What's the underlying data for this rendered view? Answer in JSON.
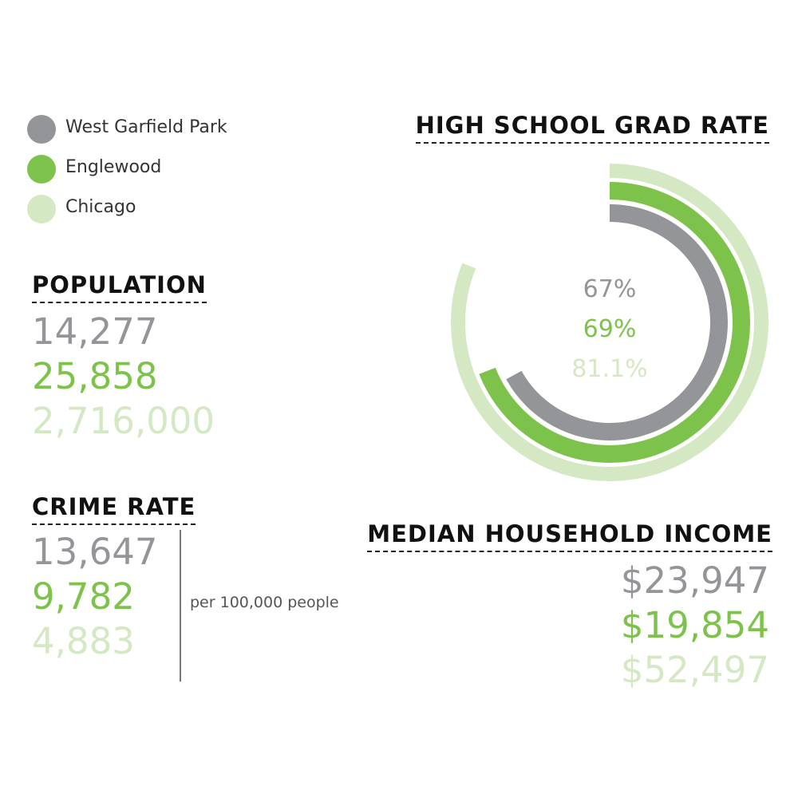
{
  "legend": [
    {
      "label": "West Garfield Park",
      "color": "#939598"
    },
    {
      "label": "Englewood",
      "color": "#7dc24b"
    },
    {
      "label": "Chicago",
      "color": "#d3e8c3"
    }
  ],
  "population": {
    "title": "POPULATION",
    "values": [
      "14,277",
      "25,858",
      "2,716,000"
    ]
  },
  "crime": {
    "title": "CRIME RATE",
    "values": [
      "13,647",
      "9,782",
      "4,883"
    ],
    "unit": "per 100,000 people"
  },
  "income": {
    "title": "MEDIAN HOUSEHOLD INCOME",
    "values": [
      "$23,947",
      "$19,854",
      "$52,497"
    ]
  },
  "chart_data": {
    "type": "radial-bar",
    "title": "HIGH SCHOOL GRAD RATE",
    "series": [
      {
        "name": "West Garfield Park",
        "value": 67,
        "label": "67%",
        "color": "#939598"
      },
      {
        "name": "Englewood",
        "value": 69,
        "label": "69%",
        "color": "#7dc24b"
      },
      {
        "name": "Chicago",
        "value": 81.1,
        "label": "81.1%",
        "color": "#d3e8c3"
      }
    ],
    "ylim": [
      0,
      100
    ],
    "grid": false
  }
}
